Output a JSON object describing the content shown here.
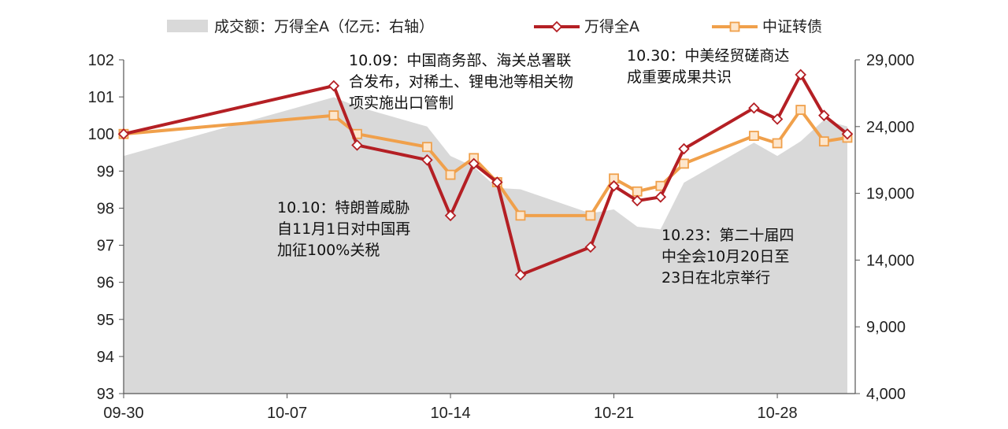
{
  "chart_data": {
    "type": "line",
    "x": [
      "09-30",
      "10-09",
      "10-10",
      "10-13",
      "10-14",
      "10-15",
      "10-16",
      "10-17",
      "10-20",
      "10-21",
      "10-22",
      "10-23",
      "10-24",
      "10-27",
      "10-28",
      "10-29",
      "10-30",
      "10-31"
    ],
    "x_ticks": [
      "09-30",
      "10-07",
      "10-14",
      "10-21",
      "10-28"
    ],
    "ylim_left": [
      93,
      102
    ],
    "ylim_right": [
      4000,
      29000
    ],
    "yticks_left": [
      "93",
      "94",
      "95",
      "96",
      "97",
      "98",
      "99",
      "100",
      "101",
      "102"
    ],
    "yticks_right": [
      "4,000",
      "9,000",
      "14,000",
      "19,000",
      "24,000",
      "29,000"
    ],
    "series": [
      {
        "name": "成交额：万得全A（亿元：右轴）",
        "type": "area",
        "axis": "right",
        "color": "#d9d9d9",
        "values": [
          21800,
          26200,
          25500,
          24000,
          21800,
          21000,
          19400,
          19300,
          17500,
          17800,
          16500,
          16300,
          19800,
          22800,
          21800,
          22900,
          24500,
          24000
        ]
      },
      {
        "name": "万得全A",
        "type": "line",
        "axis": "left",
        "color": "#b41f24",
        "values": [
          100.0,
          101.3,
          99.7,
          99.3,
          97.8,
          99.2,
          98.7,
          96.2,
          96.95,
          98.6,
          98.2,
          98.3,
          99.6,
          100.7,
          100.4,
          101.6,
          100.5,
          100.0
        ]
      },
      {
        "name": "中证转债",
        "type": "line",
        "axis": "left",
        "color": "#f0a04b",
        "values": [
          100.0,
          100.5,
          100.0,
          99.65,
          98.9,
          99.35,
          98.7,
          97.8,
          97.8,
          98.8,
          98.45,
          98.6,
          99.2,
          99.95,
          99.75,
          100.65,
          99.8,
          99.9
        ]
      }
    ],
    "annotations": [
      {
        "lines": [
          "10.09：中国商务部、海关总署联",
          "合发布，对稀土、锂电池等相关物",
          "项实施出口管制"
        ]
      },
      {
        "lines": [
          "10.10：特朗普威胁",
          "自11月1日对中国再",
          "加征100%关税"
        ]
      },
      {
        "lines": [
          "10.30：中美经贸磋商达",
          "成重要成果共识"
        ]
      },
      {
        "lines": [
          "10.23：第二十届四",
          "中全会10月20日至",
          "23日在北京举行"
        ]
      }
    ]
  }
}
